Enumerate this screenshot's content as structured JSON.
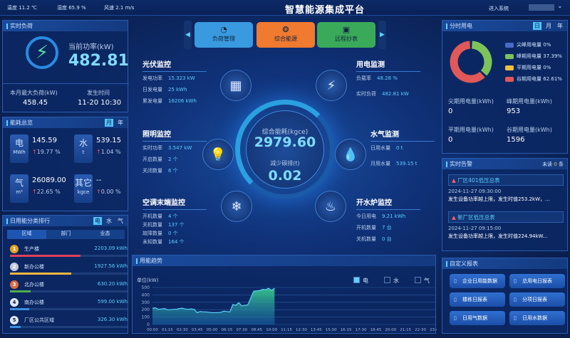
{
  "header": {
    "weather": [
      "温度 11.2 ℃",
      "湿度 65.9 %",
      "风速 2.1 m/s"
    ],
    "title": "智慧能源集成平台",
    "enter": "进入系统",
    "user_dropdown": "⌄"
  },
  "realtime_load": {
    "title": "实时负荷",
    "power_label": "当前功率(kW)",
    "power_value": "482.81",
    "max_label": "本月最大负荷(kW)",
    "max_value": "458.45",
    "time_label": "发生时间",
    "time_value": "11-20 10:30"
  },
  "overview": {
    "title": "能耗总览",
    "tabs": [
      "月",
      "年"
    ],
    "items": [
      {
        "name": "电",
        "unit": "MWh",
        "value": "145.59",
        "change": "19.77 %"
      },
      {
        "name": "水",
        "unit": "t",
        "value": "539.15",
        "change": "1.04 %"
      },
      {
        "name": "气",
        "unit": "m³",
        "value": "26089.00",
        "change": "22.65 %"
      },
      {
        "name": "其它",
        "unit": "kgce",
        "value": "--",
        "change": "0.00 %"
      }
    ]
  },
  "ranking": {
    "title": "日用能分类排行",
    "tabs": [
      "电",
      "水",
      "气"
    ],
    "subtabs": [
      "区域",
      "部门",
      "业态"
    ],
    "items": [
      {
        "rank": "1",
        "name": "生产楼",
        "value": "2203.09 kWh",
        "pct": 100,
        "color": "#e0405a"
      },
      {
        "rank": "2",
        "name": "新办公楼",
        "value": "1927.56 kWh",
        "pct": 87,
        "color": "#f0b840"
      },
      {
        "rank": "3",
        "name": "北办公楼",
        "value": "630.20 kWh",
        "pct": 29,
        "color": "#4caf50"
      },
      {
        "rank": "4",
        "name": "南办公楼",
        "value": "599.00 kWh",
        "pct": 27,
        "color": "#3a8ee0"
      },
      {
        "rank": "5",
        "name": "厂区公共区域",
        "value": "326.30 kWh",
        "pct": 15,
        "color": "#3a8ee0"
      }
    ]
  },
  "nav": {
    "buttons": [
      {
        "label": "负荷管理",
        "icon": "gauge-icon",
        "color": "#3a9ae0"
      },
      {
        "label": "综合能源",
        "icon": "energy-icon",
        "color": "#f07a30"
      },
      {
        "label": "远程抄表",
        "icon": "meter-icon",
        "color": "#3aaa5a"
      }
    ]
  },
  "center": {
    "pv": {
      "title": "光伏监控",
      "rows": [
        [
          "发电功率",
          "15.323 kW"
        ],
        [
          "日发电量",
          "25 kWh"
        ],
        [
          "累发电量",
          "16206 kWh"
        ]
      ]
    },
    "power": {
      "title": "用电监测",
      "rows": [
        [
          "负载率",
          "48.28 %"
        ],
        [
          "实时负荷",
          "482.81 kW"
        ]
      ]
    },
    "light": {
      "title": "照明监控",
      "rows": [
        [
          "实时功率",
          "3.547 kW"
        ],
        [
          "开启数量",
          "2 个"
        ],
        [
          "关闭数量",
          "6 个"
        ]
      ]
    },
    "water": {
      "title": "水气监测",
      "rows": [
        [
          "日用水量",
          "0 t"
        ],
        [
          "月用水量",
          "539.15 t"
        ]
      ]
    },
    "ac": {
      "title": "空调末端监控",
      "rows": [
        [
          "开机数量",
          "4 个"
        ],
        [
          "关机数量",
          "137 个"
        ],
        [
          "故障数量",
          "0 个"
        ],
        [
          "未知数量",
          "164 个"
        ]
      ]
    },
    "boiler": {
      "title": "开水炉监控",
      "rows": [
        [
          "今日用电",
          "9.21 kWh"
        ],
        [
          "开机数量",
          "7 台"
        ],
        [
          "关机数量",
          "0 台"
        ]
      ]
    },
    "total_label": "综合能耗(kgce)",
    "total_value": "2979.60",
    "carbon_label": "减少碳排(t)",
    "carbon_value": "0.02"
  },
  "tou": {
    "title": "分时用电",
    "tabs": [
      "日",
      "月",
      "年"
    ],
    "legend": [
      {
        "name": "尖峰用电量",
        "pct": "0%",
        "value": 0,
        "color": "#4a6ac8"
      },
      {
        "name": "峰期用电量",
        "pct": "37.39%",
        "value": 37.39,
        "color": "#7cc45a"
      },
      {
        "name": "平期用电量",
        "pct": "0%",
        "value": 0,
        "color": "#f0c040"
      },
      {
        "name": "谷期用电量",
        "pct": "62.61%",
        "value": 62.61,
        "color": "#e05858"
      }
    ],
    "stats": [
      [
        "尖期用电量(kWh)",
        "0"
      ],
      [
        "峰期用电量(kWh)",
        "953"
      ],
      [
        "平期用电量(kWh)",
        "0"
      ],
      [
        "谷期用电量(kWh)",
        "1596"
      ]
    ]
  },
  "alarms": {
    "title": "实时告警",
    "unread_prefix": "未读",
    "unread_count": "0",
    "unread_suffix": "条",
    "items": [
      {
        "name": "厂区401低压总表",
        "time": "2024-11-27 09:30:00",
        "desc": "发生设备功率越上限，发生时值253.2kW，..."
      },
      {
        "name": "新厂区低压总表",
        "time": "2024-11-27 09:15:00",
        "desc": "发生设备功率越上限，发生时值224.94kW..."
      }
    ]
  },
  "reports": {
    "title": "自定义报表",
    "buttons": [
      "企业日用能数据",
      "总用电日报表",
      "楼栋日报表",
      "分项日报表",
      "日用气数据",
      "日用水数据"
    ]
  },
  "chart_data": {
    "type": "area",
    "title": "用能趋势",
    "ylabel": "单位(kW)",
    "ylim": [
      0,
      500
    ],
    "yticks": [
      "0",
      "100",
      "200",
      "300",
      "400",
      "500"
    ],
    "grid": true,
    "legend": [
      "电",
      "水",
      "气"
    ],
    "legend_active": "电",
    "legend_placement": "top-right",
    "xticks": [
      "00:00",
      "01:15",
      "02:30",
      "03:45",
      "05:00",
      "06:15",
      "07:30",
      "08:45",
      "10:00",
      "11:15",
      "12:30",
      "13:45",
      "15:00",
      "16:15",
      "17:30",
      "18:45",
      "20:00",
      "21:15",
      "22:30",
      "23:45"
    ],
    "x_interval_minutes": 15,
    "series": [
      {
        "name": "电",
        "color": "#5ad0ff",
        "values": [
          220,
          225,
          205,
          210,
          215,
          200,
          200,
          205,
          205,
          215,
          220,
          210,
          205,
          210,
          205,
          160,
          175,
          170,
          170,
          165,
          160,
          160,
          160,
          165,
          180,
          175,
          170,
          270,
          260,
          295,
          250,
          260,
          265,
          360,
          450,
          455,
          460,
          475,
          470,
          490,
          460,
          490
        ]
      }
    ]
  }
}
